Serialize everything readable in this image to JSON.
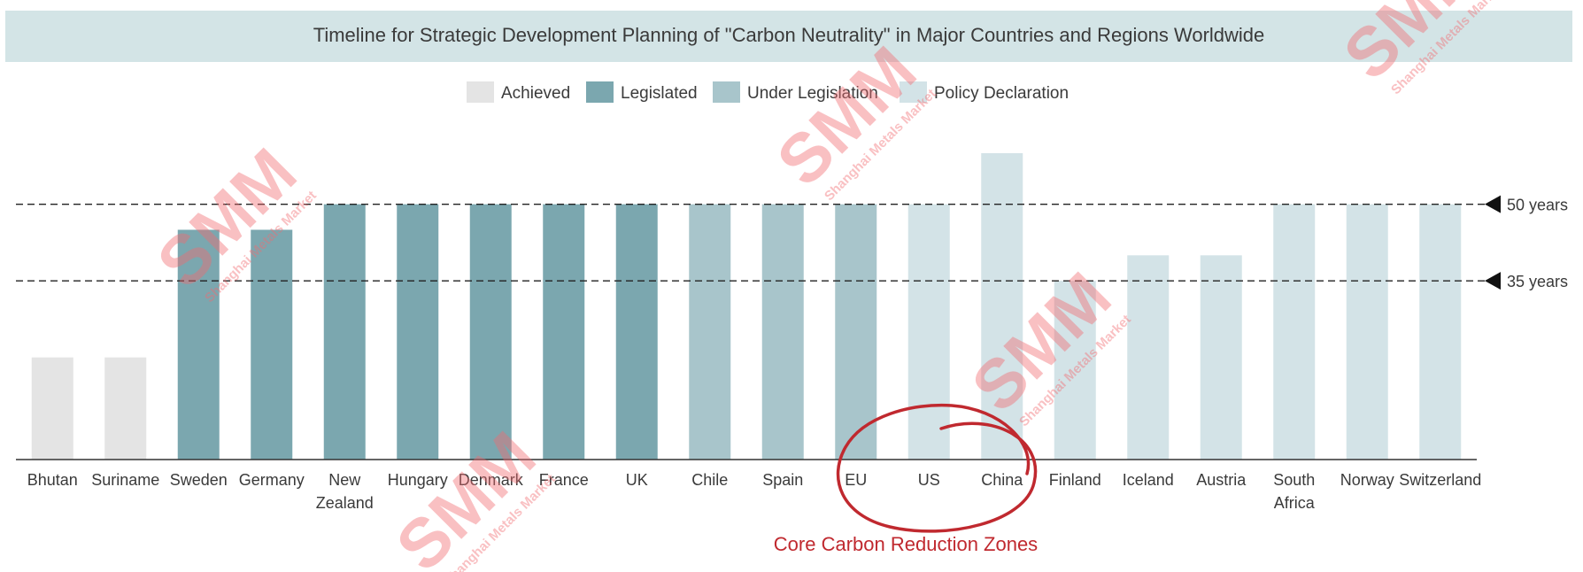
{
  "title": "Timeline for Strategic Development Planning of \"Carbon Neutrality\" in Major Countries and Regions Worldwide",
  "colors": {
    "title_band": "#d3e4e6",
    "Achieved": "#e4e4e4",
    "Legislated": "#7ba7af",
    "Under Legislation": "#a8c5cb",
    "Policy Declaration": "#d3e3e7",
    "annotation": "#c0292f",
    "watermark": "#f26a70"
  },
  "legend": [
    {
      "name": "Achieved"
    },
    {
      "name": "Legislated"
    },
    {
      "name": "Under Legislation"
    },
    {
      "name": "Policy Declaration"
    }
  ],
  "chart_data": {
    "type": "bar",
    "title": "Timeline for Strategic Development Planning of \"Carbon Neutrality\" in Major Countries and Regions Worldwide",
    "xlabel": "",
    "ylabel": "",
    "ylim": [
      0,
      60
    ],
    "grid": false,
    "legend_position": "top-center",
    "categories": [
      [
        "Bhutan"
      ],
      [
        "Suriname"
      ],
      [
        "Sweden"
      ],
      [
        "Germany"
      ],
      [
        "New",
        "Zealand"
      ],
      [
        "Hungary"
      ],
      [
        "Denmark"
      ],
      [
        "France"
      ],
      [
        "UK"
      ],
      [
        "Chile"
      ],
      [
        "Spain"
      ],
      [
        "EU"
      ],
      [
        "US"
      ],
      [
        "China"
      ],
      [
        "Finland"
      ],
      [
        "Iceland"
      ],
      [
        "Austria"
      ],
      [
        "South",
        "Africa"
      ],
      [
        "Norway"
      ],
      [
        "Switzerland"
      ]
    ],
    "values": [
      20,
      20,
      45,
      45,
      50,
      50,
      50,
      50,
      50,
      50,
      50,
      50,
      50,
      60,
      35,
      40,
      40,
      50,
      50,
      50
    ],
    "status": [
      "Achieved",
      "Achieved",
      "Legislated",
      "Legislated",
      "Legislated",
      "Legislated",
      "Legislated",
      "Legislated",
      "Legislated",
      "Under Legislation",
      "Under Legislation",
      "Under Legislation",
      "Policy Declaration",
      "Policy Declaration",
      "Policy Declaration",
      "Policy Declaration",
      "Policy Declaration",
      "Policy Declaration",
      "Policy Declaration",
      "Policy Declaration"
    ],
    "reference_lines": [
      {
        "value": 50,
        "label": "50 years"
      },
      {
        "value": 35,
        "label": "35 years"
      }
    ]
  },
  "annotation": {
    "text": "Core Carbon Reduction Zones",
    "circled_categories": [
      "EU",
      "US",
      "China"
    ]
  },
  "watermark": {
    "logo": "SMM",
    "subtitle": "Shanghai Metals Market"
  }
}
